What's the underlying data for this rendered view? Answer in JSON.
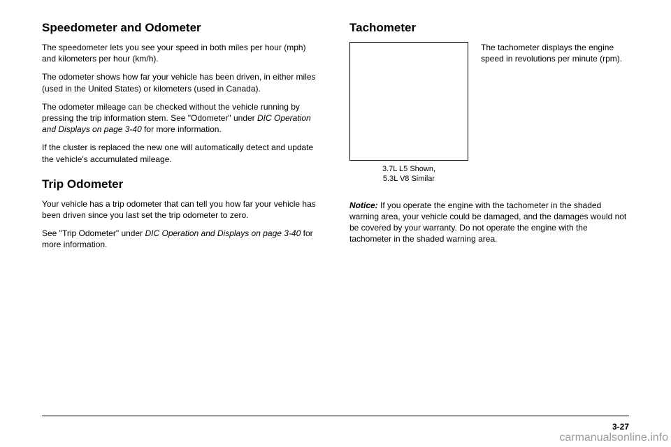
{
  "left": {
    "heading1": "Speedometer and Odometer",
    "p1": "The speedometer lets you see your speed in both miles per hour (mph) and kilometers per hour (km/h).",
    "p2": "The odometer shows how far your vehicle has been driven, in either miles (used in the United States) or kilometers (used in Canada).",
    "p3a": "The odometer mileage can be checked without the vehicle running by pressing the trip information stem. See \"Odometer\" under ",
    "p3ref": "DIC Operation and Displays on page 3-40",
    "p3b": " for more information.",
    "p4": "If the cluster is replaced the new one will automatically detect and update the vehicle's accumulated mileage.",
    "heading2": "Trip Odometer",
    "p5": "Your vehicle has a trip odometer that can tell you how far your vehicle has been driven since you last set the trip odometer to zero.",
    "p6a": "See \"Trip Odometer\" under ",
    "p6ref": "DIC Operation and Displays on page 3-40",
    "p6b": " for more information."
  },
  "right": {
    "heading": "Tachometer",
    "caption1": "3.7L L5 Shown,",
    "caption2": "5.3L V8 Similar",
    "desc": "The tachometer displays the engine speed in revolutions per minute (rpm).",
    "noticeLabel": "Notice:",
    "notice": "If you operate the engine with the tachometer in the shaded warning area, your vehicle could be damaged, and the damages would not be covered by your warranty. Do not operate the engine with the tachometer in the shaded warning area."
  },
  "pageNumber": "3-27",
  "watermark": "carmanualsonline.info"
}
